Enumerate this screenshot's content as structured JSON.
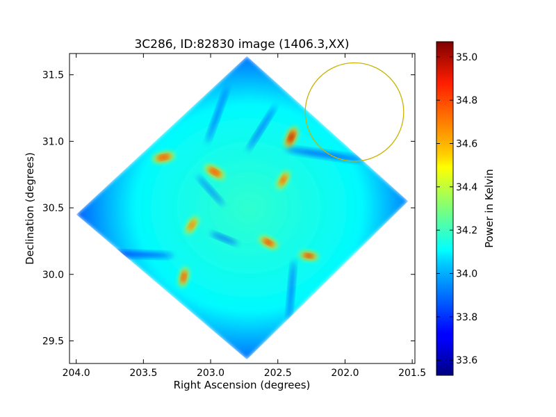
{
  "chart_data": {
    "type": "heatmap",
    "title": "3C286, ID:82830 image (1406.3,XX)",
    "xlabel": "Right Ascension (degrees)",
    "ylabel": "Declination (degrees)",
    "xlim": [
      204.05,
      201.48
    ],
    "ylim": [
      29.33,
      31.66
    ],
    "x_ticks": [
      204.0,
      203.5,
      203.0,
      202.5,
      202.0,
      201.5
    ],
    "x_tick_labels": [
      "204.0",
      "203.5",
      "203.0",
      "202.5",
      "202.0",
      "201.5"
    ],
    "y_ticks": [
      29.5,
      30.0,
      30.5,
      31.0,
      31.5
    ],
    "y_tick_labels": [
      "29.5",
      "30.0",
      "30.5",
      "31.0",
      "31.5"
    ],
    "colorbar": {
      "label": "Power in Kelvin",
      "colormap": "jet",
      "range": [
        33.53,
        35.07
      ],
      "ticks": [
        33.6,
        33.8,
        34.0,
        34.2,
        34.4,
        34.6,
        34.8,
        35.0
      ],
      "tick_labels": [
        "33.6",
        "33.8",
        "34.0",
        "34.2",
        "34.4",
        "34.6",
        "34.8",
        "35.0"
      ]
    },
    "coverage_corners": [
      {
        "ra": 202.73,
        "dec": 31.64
      },
      {
        "ra": 201.53,
        "dec": 30.55
      },
      {
        "ra": 202.73,
        "dec": 29.36
      },
      {
        "ra": 204.0,
        "dec": 30.45
      }
    ],
    "background_level": 34.1,
    "features": [
      {
        "kind": "hot-lobe",
        "ra": 203.35,
        "dec": 30.88,
        "length_deg": 0.17,
        "angle_deg": -12,
        "peak": 34.85
      },
      {
        "kind": "hot-lobe",
        "ra": 202.97,
        "dec": 30.77,
        "length_deg": 0.17,
        "angle_deg": 30,
        "peak": 34.85
      },
      {
        "kind": "hot-lobe",
        "ra": 202.4,
        "dec": 31.03,
        "length_deg": 0.17,
        "angle_deg": -67,
        "peak": 35.03
      },
      {
        "kind": "hot-lobe",
        "ra": 202.46,
        "dec": 30.71,
        "length_deg": 0.15,
        "angle_deg": -60,
        "peak": 34.8
      },
      {
        "kind": "hot-lobe",
        "ra": 203.14,
        "dec": 30.37,
        "length_deg": 0.15,
        "angle_deg": -58,
        "peak": 34.75
      },
      {
        "kind": "hot-lobe",
        "ra": 202.57,
        "dec": 30.24,
        "length_deg": 0.15,
        "angle_deg": 28,
        "peak": 34.9
      },
      {
        "kind": "hot-lobe",
        "ra": 202.27,
        "dec": 30.14,
        "length_deg": 0.14,
        "angle_deg": 8,
        "peak": 34.95
      },
      {
        "kind": "hot-lobe",
        "ra": 203.2,
        "dec": 29.98,
        "length_deg": 0.15,
        "angle_deg": -77,
        "peak": 34.85
      },
      {
        "kind": "cold-streak",
        "ra": 202.95,
        "dec": 31.2,
        "length_deg": 0.45,
        "angle_deg": -70,
        "peak": 33.8
      },
      {
        "kind": "cold-streak",
        "ra": 202.62,
        "dec": 31.1,
        "length_deg": 0.4,
        "angle_deg": -58,
        "peak": 33.8
      },
      {
        "kind": "cold-streak",
        "ra": 202.15,
        "dec": 30.9,
        "length_deg": 0.6,
        "angle_deg": 8,
        "peak": 33.8
      },
      {
        "kind": "cold-streak",
        "ra": 203.55,
        "dec": 30.15,
        "length_deg": 0.55,
        "angle_deg": 2,
        "peak": 33.75
      },
      {
        "kind": "cold-streak",
        "ra": 202.4,
        "dec": 29.88,
        "length_deg": 0.45,
        "angle_deg": -85,
        "peak": 33.8
      },
      {
        "kind": "cold-streak",
        "ra": 203.0,
        "dec": 30.63,
        "length_deg": 0.3,
        "angle_deg": 48,
        "peak": 33.85
      },
      {
        "kind": "cold-streak",
        "ra": 202.9,
        "dec": 30.27,
        "length_deg": 0.22,
        "angle_deg": 22,
        "peak": 33.8
      }
    ],
    "circle_marker": {
      "ra": 201.93,
      "dec": 31.22,
      "radius_deg": 0.37,
      "color": "#c8b400"
    }
  }
}
